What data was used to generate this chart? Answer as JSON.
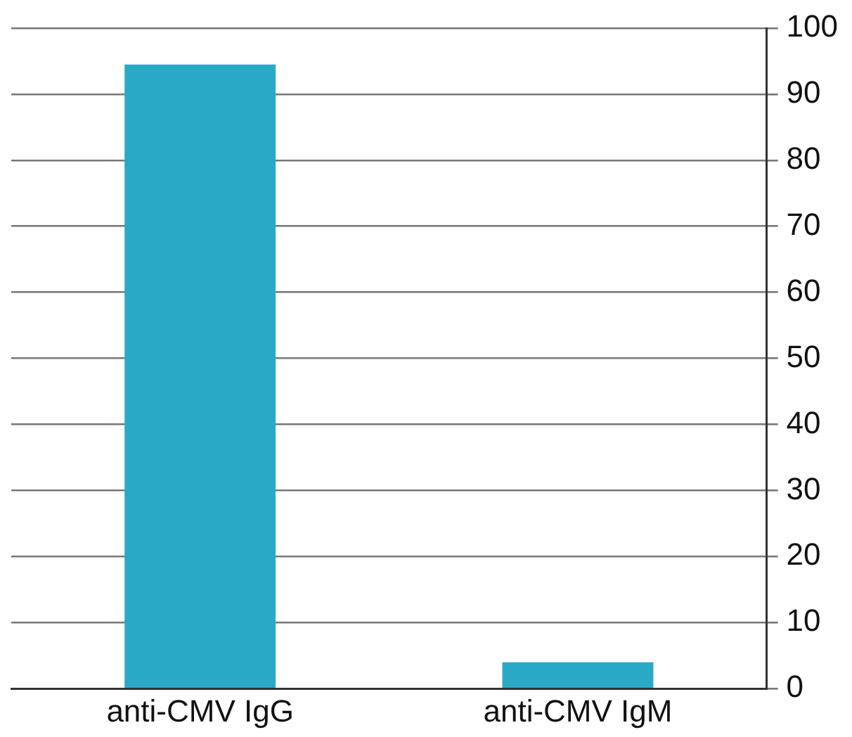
{
  "chart_data": {
    "type": "bar",
    "categories": [
      "anti-CMV IgG",
      "anti-CMV IgM"
    ],
    "values": [
      94.5,
      4
    ],
    "color": "#2aa9c6",
    "ylim": [
      0,
      100
    ],
    "yticks": [
      0,
      10,
      20,
      30,
      40,
      50,
      60,
      70,
      80,
      90,
      100
    ],
    "grid": "y",
    "legend": false
  }
}
